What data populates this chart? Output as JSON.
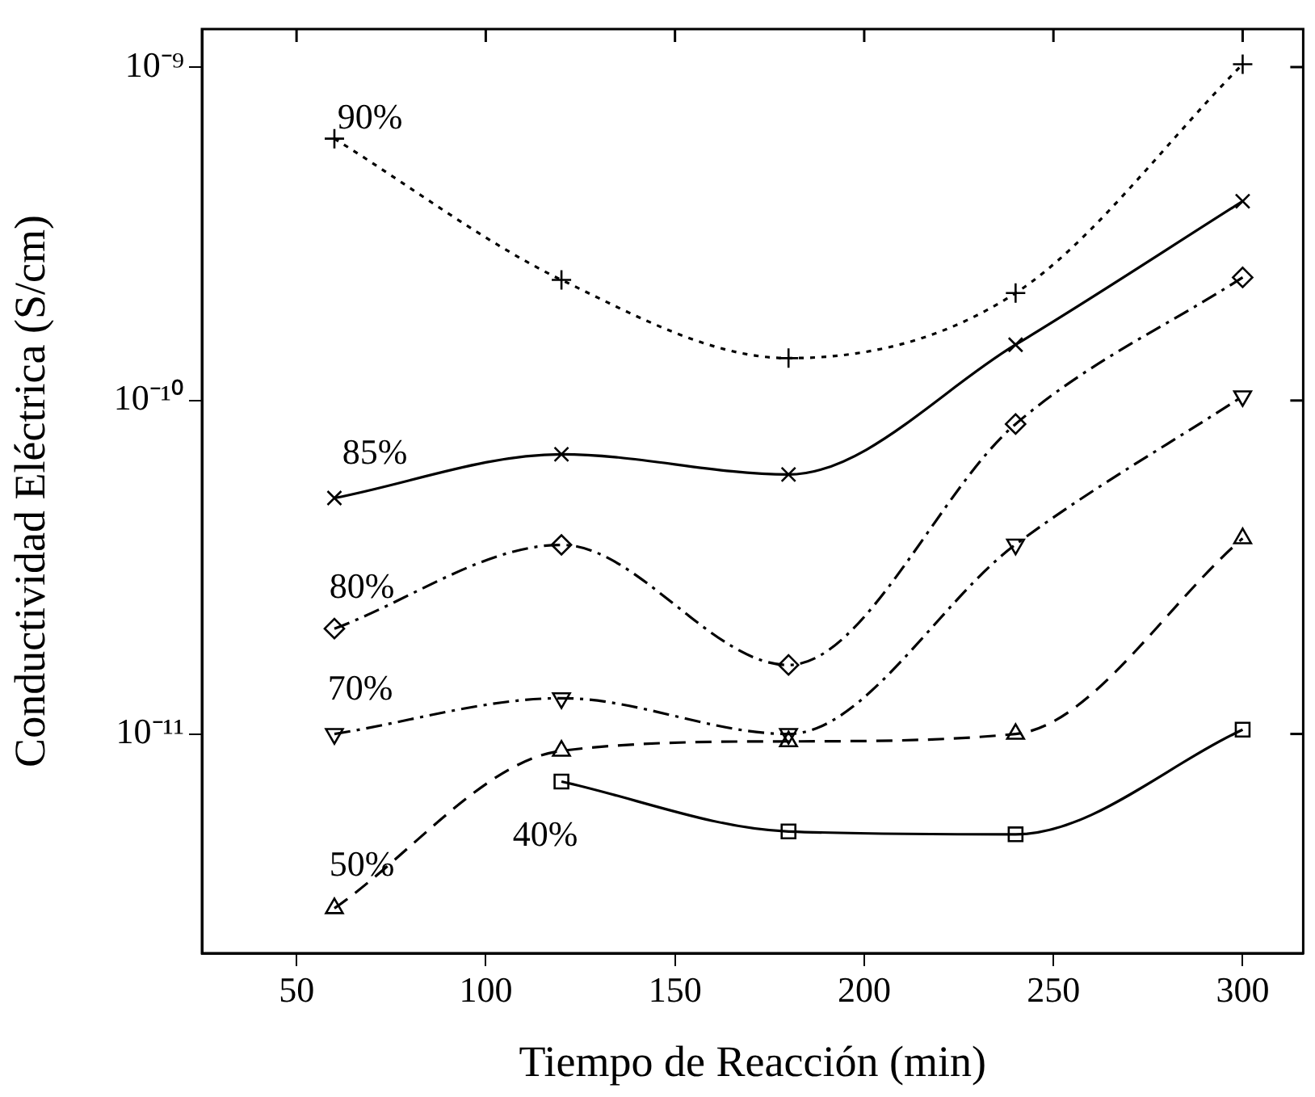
{
  "chart_data": {
    "type": "line",
    "xlabel": "Tiempo de Reacción (min)",
    "ylabel": "Conductividad Eléctrica (S/cm)",
    "x": [
      60,
      120,
      180,
      240,
      300
    ],
    "log": "y",
    "grid": false,
    "legend": false,
    "xlim": [
      25,
      316
    ],
    "xticks": [
      50,
      100,
      150,
      200,
      250,
      300
    ],
    "ylim": [
      2.2e-12,
      1.3e-09
    ],
    "yticks": [
      {
        "value": 1e-11,
        "label": "10⁻¹¹"
      },
      {
        "value": 1e-10,
        "label": "10⁻¹⁰"
      },
      {
        "value": 1e-09,
        "label": "10⁻⁹"
      }
    ],
    "series": [
      {
        "name": "90%",
        "color": "#000000",
        "marker": "plus",
        "line_style": "dotted",
        "values": [
          6.1e-10,
          2.3e-10,
          1.34e-10,
          2.1e-10,
          1.02e-09
        ]
      },
      {
        "name": "85%",
        "color": "#000000",
        "marker": "cross",
        "line_style": "solid",
        "values": [
          5.1e-11,
          6.9e-11,
          6e-11,
          1.47e-10,
          3.96e-10
        ]
      },
      {
        "name": "80%",
        "color": "#000000",
        "marker": "diamond",
        "line_style": "dashdot",
        "values": [
          2.07e-11,
          3.69e-11,
          1.61e-11,
          8.5e-11,
          2.34e-10
        ]
      },
      {
        "name": "70%",
        "color": "#000000",
        "marker": "triangle_down",
        "line_style": "dashdot",
        "values": [
          1e-11,
          1.28e-11,
          1e-11,
          3.7e-11,
          1.03e-10
        ]
      },
      {
        "name": "50%",
        "color": "#000000",
        "marker": "triangle",
        "line_style": "dashed",
        "values": [
          3e-12,
          8.9e-12,
          9.5e-12,
          1e-11,
          3.86e-11
        ]
      },
      {
        "name": "40%",
        "color": "#000000",
        "marker": "square",
        "line_style": "solid",
        "values": [
          null,
          7.2e-12,
          5.1e-12,
          5e-12,
          1.03e-11
        ]
      }
    ]
  }
}
